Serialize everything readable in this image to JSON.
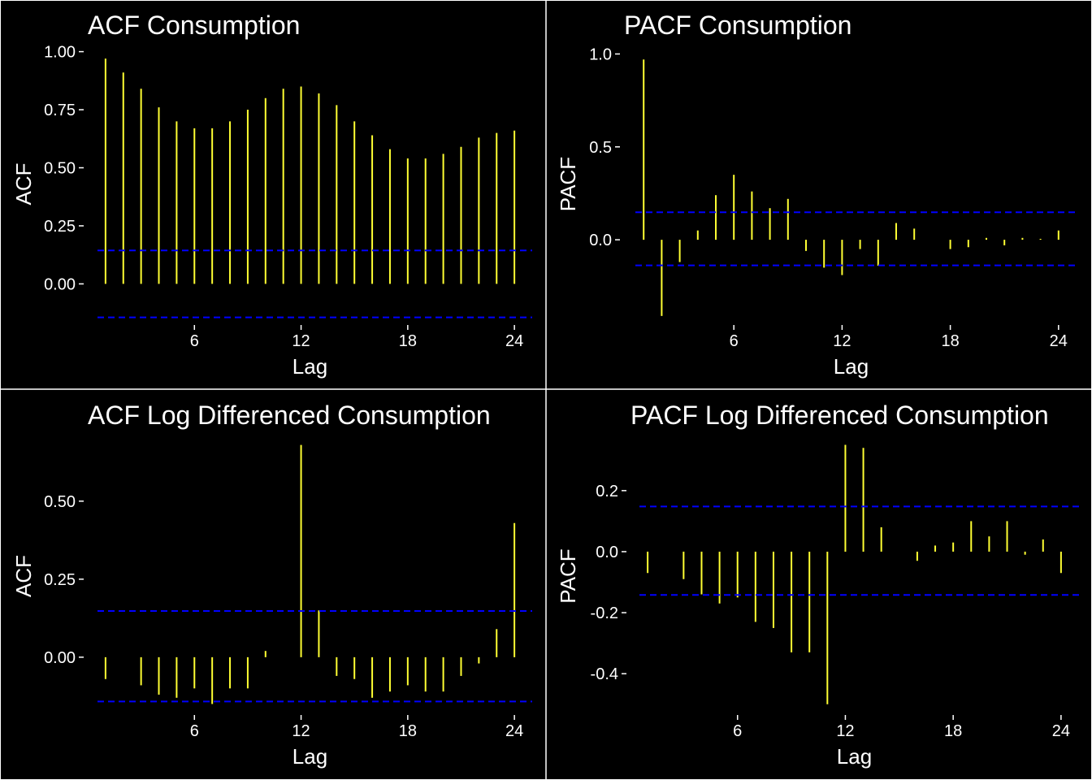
{
  "colors": {
    "background": "#000000",
    "foreground": "#ffffff",
    "bar": "#ffff33",
    "ci": "#0000ff"
  },
  "chart_data": [
    {
      "id": "acf-consumption",
      "type": "bar",
      "title": "ACF Consumption",
      "xlabel": "Lag",
      "ylabel": "ACF",
      "x": [
        1,
        2,
        3,
        4,
        5,
        6,
        7,
        8,
        9,
        10,
        11,
        12,
        13,
        14,
        15,
        16,
        17,
        18,
        19,
        20,
        21,
        22,
        23,
        24
      ],
      "values": [
        0.97,
        0.91,
        0.84,
        0.76,
        0.7,
        0.67,
        0.67,
        0.7,
        0.75,
        0.8,
        0.84,
        0.85,
        0.82,
        0.77,
        0.7,
        0.64,
        0.58,
        0.54,
        0.54,
        0.56,
        0.59,
        0.63,
        0.65,
        0.66
      ],
      "ci": [
        0.144,
        -0.144
      ],
      "yticks": [
        0,
        0.25,
        0.5,
        0.75,
        1.0
      ],
      "ytick_labels": [
        "0.00",
        "0.25",
        "0.50",
        "0.75",
        "1.00"
      ],
      "xticks": [
        6,
        12,
        18,
        24
      ],
      "xtick_labels": [
        "6",
        "12",
        "18",
        "24"
      ],
      "ylim": [
        -0.17,
        1.03
      ],
      "xlim": [
        0,
        25
      ],
      "grid": false
    },
    {
      "id": "pacf-consumption",
      "type": "bar",
      "title": "PACF Consumption",
      "xlabel": "Lag",
      "ylabel": "PACF",
      "x": [
        1,
        2,
        3,
        4,
        5,
        6,
        7,
        8,
        9,
        10,
        11,
        12,
        13,
        14,
        15,
        16,
        17,
        18,
        19,
        20,
        21,
        22,
        23,
        24
      ],
      "values": [
        0.97,
        -0.41,
        -0.12,
        0.05,
        0.24,
        0.35,
        0.26,
        0.17,
        0.22,
        -0.06,
        -0.15,
        -0.19,
        -0.05,
        -0.14,
        0.09,
        0.06,
        0.0,
        -0.05,
        -0.04,
        0.01,
        -0.03,
        0.01,
        0.005,
        0.05
      ],
      "ci": [
        0.148,
        -0.138
      ],
      "yticks": [
        0,
        0.5,
        1.0
      ],
      "ytick_labels": [
        "0.0",
        "0.5",
        "1.0"
      ],
      "xticks": [
        6,
        12,
        18,
        24
      ],
      "xtick_labels": [
        "6",
        "12",
        "18",
        "24"
      ],
      "ylim": [
        -0.45,
        1.05
      ],
      "xlim": [
        0,
        25
      ],
      "grid": false
    },
    {
      "id": "acf-log-diff",
      "type": "bar",
      "title": "ACF Log Differenced Consumption",
      "xlabel": "Lag",
      "ylabel": "ACF",
      "x": [
        1,
        2,
        3,
        4,
        5,
        6,
        7,
        8,
        9,
        10,
        11,
        12,
        13,
        14,
        15,
        16,
        17,
        18,
        19,
        20,
        21,
        22,
        23,
        24
      ],
      "values": [
        -0.07,
        0.0,
        -0.09,
        -0.12,
        -0.13,
        -0.1,
        -0.15,
        -0.1,
        -0.1,
        0.02,
        0.0,
        0.68,
        0.15,
        -0.06,
        -0.07,
        -0.13,
        -0.11,
        -0.09,
        -0.11,
        -0.11,
        -0.06,
        -0.02,
        0.09,
        0.43
      ],
      "ci": [
        0.148,
        -0.142
      ],
      "yticks": [
        0,
        0.25,
        0.5
      ],
      "ytick_labels": [
        "0.00",
        "0.25",
        "0.50"
      ],
      "xticks": [
        6,
        12,
        18,
        24
      ],
      "xtick_labels": [
        "6",
        "12",
        "18",
        "24"
      ],
      "ylim": [
        -0.18,
        0.7
      ],
      "xlim": [
        0,
        25
      ],
      "grid": false
    },
    {
      "id": "pacf-log-diff",
      "type": "bar",
      "title": "PACF Log Differenced Consumption",
      "xlabel": "Lag",
      "ylabel": "PACF",
      "x": [
        1,
        2,
        3,
        4,
        5,
        6,
        7,
        8,
        9,
        10,
        11,
        12,
        13,
        14,
        15,
        16,
        17,
        18,
        19,
        20,
        21,
        22,
        23,
        24
      ],
      "values": [
        -0.07,
        0.0,
        -0.09,
        -0.14,
        -0.17,
        -0.15,
        -0.23,
        -0.25,
        -0.33,
        -0.33,
        -0.5,
        0.35,
        0.34,
        0.08,
        0.0,
        -0.03,
        0.02,
        0.03,
        0.1,
        0.05,
        0.1,
        -0.01,
        0.04,
        -0.07
      ],
      "ci": [
        0.148,
        -0.142
      ],
      "yticks": [
        -0.4,
        -0.2,
        0,
        0.2
      ],
      "ytick_labels": [
        "-0.4",
        "-0.2",
        "0.0",
        "0.2"
      ],
      "xticks": [
        6,
        12,
        18,
        24
      ],
      "xtick_labels": [
        "6",
        "12",
        "18",
        "24"
      ],
      "ylim": [
        -0.53,
        0.37
      ],
      "xlim": [
        0,
        25
      ],
      "grid": false
    }
  ]
}
